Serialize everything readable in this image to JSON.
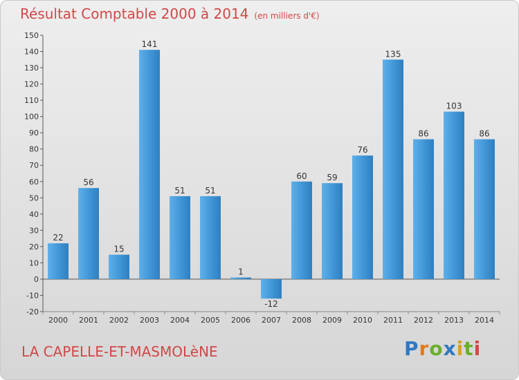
{
  "chart_data": {
    "type": "bar",
    "title": "Résultat Comptable 2000 à 2014",
    "unit_label": "(en milliers d'€)",
    "categories": [
      "2000",
      "2001",
      "2002",
      "2003",
      "2004",
      "2005",
      "2006",
      "2007",
      "2008",
      "2009",
      "2010",
      "2011",
      "2012",
      "2013",
      "2014"
    ],
    "values": [
      22,
      56,
      15,
      141,
      51,
      51,
      1,
      -12,
      60,
      59,
      76,
      135,
      86,
      103,
      86
    ],
    "value_labels": [
      "22",
      "56",
      "15",
      "141",
      "51",
      "51",
      "1",
      "-12",
      "60",
      "59",
      "76",
      "135",
      "86",
      "103",
      "86"
    ],
    "ylim": [
      -20,
      150
    ],
    "yticks": [
      "150",
      "140",
      "130",
      "120",
      "110",
      "100",
      "90",
      "80",
      "70",
      "60",
      "50",
      "40",
      "30",
      "20",
      "10",
      "0",
      "-10",
      "-20"
    ],
    "xlabel": "",
    "ylabel": "",
    "grid": false,
    "bar_color": "#3f95d6"
  },
  "footer": {
    "commune": "LA CAPELLE-ET-MASMOLèNE",
    "logo_letters": [
      "P",
      "r",
      "o",
      "x",
      "i",
      "t",
      "i"
    ],
    "logo_colors": [
      "#2f78c4",
      "#e07b1f",
      "#6aae2b",
      "#2f78c4",
      "#d8a21c",
      "#6aae2b",
      "#d14747"
    ]
  }
}
